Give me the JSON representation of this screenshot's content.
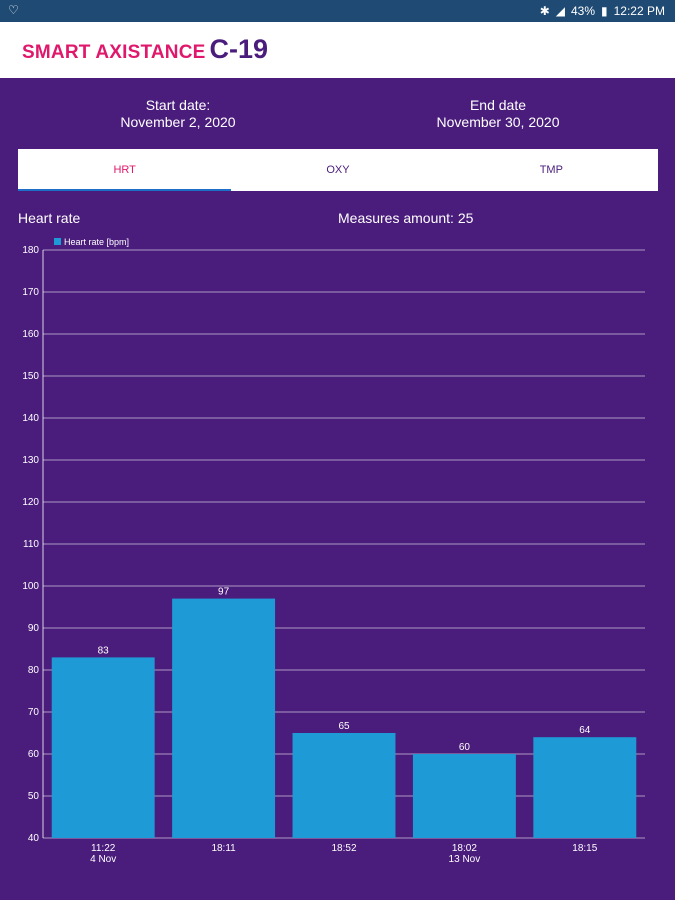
{
  "status_bar": {
    "battery": "43%",
    "time": "12:22 PM"
  },
  "app": {
    "name": "SMART AXISTANCE",
    "name_suffix": "C-19"
  },
  "dates": {
    "start_label": "Start date:",
    "start_value": "November 2, 2020",
    "end_label": "End date",
    "end_value": "November 30, 2020"
  },
  "tabs": [
    {
      "label": "HRT",
      "active": true
    },
    {
      "label": "OXY",
      "active": false
    },
    {
      "label": "TMP",
      "active": false
    }
  ],
  "chart_header": {
    "title": "Heart rate",
    "measures": "Measures amount: 25"
  },
  "colors": {
    "background": "#4a1c7c",
    "bar": "#1e9ad6",
    "accent": "#e0186c"
  },
  "chart_data": {
    "type": "bar",
    "title": "Heart rate",
    "legend": "Heart rate [bpm]",
    "legend_position": "top-left",
    "categories": [
      "11:22",
      "18:11",
      "18:52",
      "18:02",
      "18:15"
    ],
    "sub_labels": [
      "4 Nov",
      "",
      "",
      "13 Nov",
      ""
    ],
    "values": [
      83,
      97,
      65,
      60,
      64
    ],
    "ylim": [
      40,
      180
    ],
    "yticks": [
      40,
      50,
      60,
      70,
      80,
      90,
      100,
      110,
      120,
      130,
      140,
      150,
      160,
      170,
      180
    ],
    "grid": true
  }
}
